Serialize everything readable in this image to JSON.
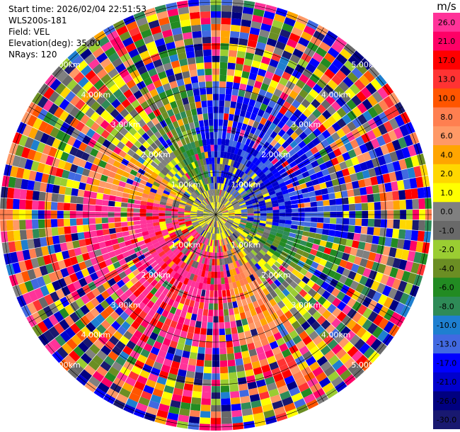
{
  "header": {
    "start_time": "Start time: 2026/02/04 22:51:53",
    "instrument": "WLS200s-181",
    "field": "Field: VEL",
    "elevation": "Elevation(deg): 35.00",
    "nrays": "NRays: 120"
  },
  "chart_data": {
    "type": "heatmap",
    "projection": "polar",
    "rays": 120,
    "range_rings_km": [
      1,
      2,
      3,
      4,
      5
    ],
    "ring_labels": [
      "1.00km",
      "2.00km",
      "3.00km",
      "4.00km",
      "5.00km"
    ],
    "colorbar": {
      "unit": "m/s",
      "ticks": [
        "26.0",
        "21.0",
        "17.0",
        "13.0",
        "10.0",
        "8.0",
        "6.0",
        "4.0",
        "2.0",
        "1.0",
        "0.0",
        "-1.0",
        "-2.0",
        "-4.0",
        "-6.0",
        "-8.0",
        "-10.0",
        "-13.0",
        "-17.0",
        "-21.0",
        "-26.0",
        "-30.0"
      ],
      "colors": [
        "#ff3399",
        "#ff0066",
        "#ff0000",
        "#ff3333",
        "#ff5500",
        "#ff7f50",
        "#ff9966",
        "#ffa500",
        "#ffd700",
        "#ffff00",
        "#808080",
        "#696969",
        "#9acd32",
        "#6b8e23",
        "#228b22",
        "#2e8b57",
        "#1e7fd0",
        "#4169e1",
        "#0000ff",
        "#0000cd",
        "#000080",
        "#191970"
      ]
    },
    "pattern": {
      "inner_radius_km": 0.6,
      "approach_color": "#ff3399",
      "approach_direction_deg": 225,
      "recede_direction_deg": 45
    }
  }
}
